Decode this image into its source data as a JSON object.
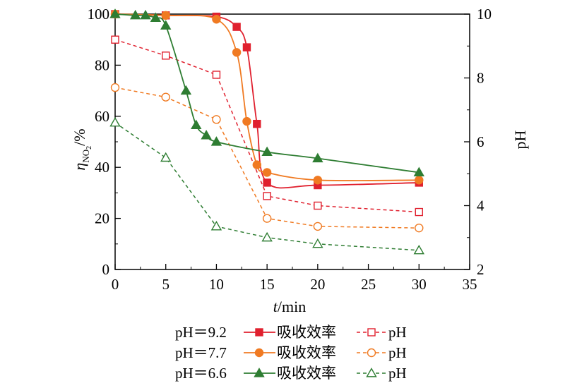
{
  "chart_data": {
    "type": "line",
    "xlabel_var": "t",
    "xlabel_unit": "/min",
    "ylabel_left_main": "η",
    "ylabel_left_sub": "NO",
    "ylabel_left_subsub": "2",
    "ylabel_left_unit": "/%",
    "ylabel_right": "pH",
    "xlim": [
      0,
      35
    ],
    "ylim_left": [
      0,
      100
    ],
    "ylim_right": [
      2,
      10
    ],
    "x_ticks": [
      0,
      5,
      10,
      15,
      20,
      25,
      30,
      35
    ],
    "y_left_ticks": [
      0,
      20,
      40,
      60,
      80,
      100
    ],
    "y_right_ticks": [
      2,
      4,
      6,
      8,
      10
    ],
    "grid": false,
    "legend_placement": "bottom",
    "series": [
      {
        "name": "pH＝9.2",
        "kind": "吸收效率",
        "color": "#e0202e",
        "marker": "square",
        "axis": "left",
        "x": [
          0,
          5,
          10,
          12,
          13,
          14,
          15,
          20,
          30
        ],
        "y": [
          100,
          99.5,
          99,
          95,
          87,
          57,
          34,
          33,
          34
        ]
      },
      {
        "name": "pH＝9.2",
        "kind": "pH",
        "color": "#e0202e",
        "marker": "square-open",
        "axis": "right",
        "x": [
          0,
          5,
          10,
          15,
          20,
          30
        ],
        "y": [
          9.2,
          8.7,
          8.1,
          4.3,
          4.0,
          3.8
        ]
      },
      {
        "name": "pH＝7.7",
        "kind": "吸收效率",
        "color": "#f07a22",
        "marker": "circle",
        "axis": "left",
        "x": [
          0,
          5,
          10,
          12,
          13,
          14,
          15,
          20,
          30
        ],
        "y": [
          100,
          99.5,
          98,
          85,
          58,
          41,
          38,
          35,
          35
        ]
      },
      {
        "name": "pH＝7.7",
        "kind": "pH",
        "color": "#f07a22",
        "marker": "circle-open",
        "axis": "right",
        "x": [
          0,
          5,
          10,
          15,
          20,
          30
        ],
        "y": [
          7.7,
          7.4,
          6.7,
          3.6,
          3.35,
          3.3
        ]
      },
      {
        "name": "pH＝6.6",
        "kind": "吸收效率",
        "color": "#2e7d32",
        "marker": "triangle",
        "axis": "left",
        "x": [
          0,
          2,
          3,
          4,
          5,
          7,
          8,
          9,
          10,
          15,
          20,
          30
        ],
        "y": [
          100,
          99.5,
          99.5,
          98.5,
          95.5,
          70,
          56.5,
          52.5,
          50,
          46,
          43.5,
          38
        ]
      },
      {
        "name": "pH＝6.6",
        "kind": "pH",
        "color": "#2e7d32",
        "marker": "triangle-open",
        "axis": "right",
        "x": [
          0,
          5,
          10,
          15,
          20,
          30
        ],
        "y": [
          6.6,
          5.5,
          3.35,
          3.0,
          2.8,
          2.6
        ]
      }
    ],
    "legend": [
      {
        "label": "pH＝9.2",
        "eff": "吸收效率",
        "ph": "pH"
      },
      {
        "label": "pH＝7.7",
        "eff": "吸收效率",
        "ph": "pH"
      },
      {
        "label": "pH＝6.6",
        "eff": "吸收效率",
        "ph": "pH"
      }
    ]
  }
}
